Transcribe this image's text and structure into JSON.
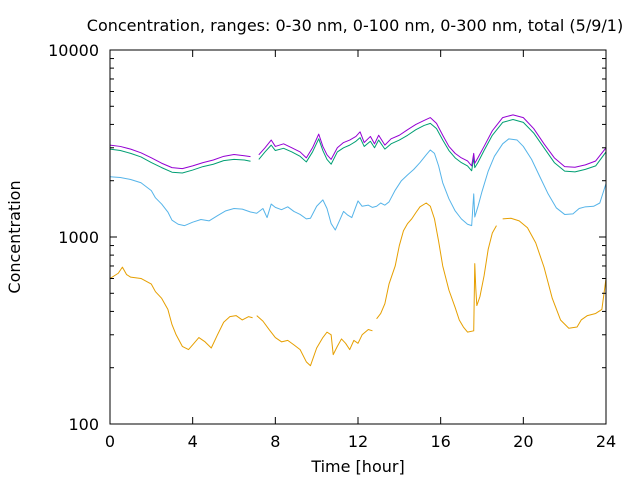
{
  "chart_data": {
    "type": "line",
    "title": "Concentration, ranges: 0-30 nm, 0-100 nm, 0-300 nm, total (5/9/1)",
    "xlabel": "Time [hour]",
    "ylabel": "Concentration",
    "xlim": [
      0,
      24
    ],
    "ylim": [
      100,
      10000
    ],
    "y_scale": "log",
    "grid": false,
    "legend": "none",
    "x_ticks": [
      0,
      4,
      8,
      12,
      16,
      20,
      24
    ],
    "x_tick_labels": [
      "0",
      "4",
      "8",
      "12",
      "16",
      "20",
      "24"
    ],
    "y_ticks": [
      100,
      1000,
      10000
    ],
    "y_tick_labels": [
      "100",
      "1000",
      "10000"
    ],
    "series": [
      {
        "color": "#e69f00",
        "points": [
          [
            0,
            600
          ],
          [
            0.4,
            640
          ],
          [
            0.6,
            690
          ],
          [
            0.8,
            630
          ],
          [
            1.0,
            610
          ],
          [
            1.5,
            600
          ],
          [
            2.0,
            560
          ],
          [
            2.2,
            510
          ],
          [
            2.5,
            470
          ],
          [
            2.8,
            410
          ],
          [
            3.0,
            340
          ],
          [
            3.2,
            300
          ],
          [
            3.5,
            260
          ],
          [
            3.8,
            250
          ],
          [
            4.0,
            265
          ],
          [
            4.3,
            290
          ],
          [
            4.6,
            275
          ],
          [
            4.9,
            255
          ],
          [
            5.2,
            300
          ],
          [
            5.5,
            350
          ],
          [
            5.8,
            375
          ],
          [
            6.1,
            380
          ],
          [
            6.4,
            360
          ],
          [
            6.7,
            375
          ],
          [
            6.9,
            370
          ],
          [
            null,
            null
          ],
          [
            7.1,
            380
          ],
          [
            7.4,
            355
          ],
          [
            7.7,
            320
          ],
          [
            8.0,
            290
          ],
          [
            8.3,
            275
          ],
          [
            8.6,
            280
          ],
          [
            8.9,
            265
          ],
          [
            9.2,
            250
          ],
          [
            9.5,
            215
          ],
          [
            9.7,
            205
          ],
          [
            10.0,
            255
          ],
          [
            10.3,
            290
          ],
          [
            10.5,
            310
          ],
          [
            10.7,
            300
          ],
          [
            10.8,
            235
          ],
          [
            11.0,
            260
          ],
          [
            11.2,
            285
          ],
          [
            11.4,
            270
          ],
          [
            11.6,
            250
          ],
          [
            11.8,
            280
          ],
          [
            12.0,
            270
          ],
          [
            12.2,
            300
          ],
          [
            12.5,
            320
          ],
          [
            12.7,
            315
          ],
          [
            null,
            null
          ],
          [
            12.9,
            365
          ],
          [
            13.1,
            390
          ],
          [
            13.3,
            440
          ],
          [
            13.5,
            560
          ],
          [
            13.8,
            700
          ],
          [
            14.0,
            900
          ],
          [
            14.2,
            1080
          ],
          [
            14.4,
            1180
          ],
          [
            14.6,
            1250
          ],
          [
            14.8,
            1350
          ],
          [
            15.0,
            1450
          ],
          [
            15.3,
            1520
          ],
          [
            15.5,
            1460
          ],
          [
            15.7,
            1250
          ],
          [
            15.9,
            950
          ],
          [
            16.1,
            700
          ],
          [
            16.4,
            520
          ],
          [
            16.7,
            420
          ],
          [
            16.9,
            360
          ],
          [
            17.1,
            330
          ],
          [
            17.3,
            310
          ],
          [
            17.6,
            315
          ],
          [
            17.65,
            720
          ],
          [
            17.7,
            530
          ],
          [
            17.75,
            430
          ],
          [
            17.9,
            480
          ],
          [
            18.1,
            620
          ],
          [
            18.3,
            860
          ],
          [
            18.5,
            1050
          ],
          [
            18.7,
            1150
          ],
          [
            null,
            null
          ],
          [
            19.0,
            1250
          ],
          [
            19.4,
            1260
          ],
          [
            19.8,
            1220
          ],
          [
            20.2,
            1120
          ],
          [
            20.6,
            930
          ],
          [
            21.0,
            690
          ],
          [
            21.4,
            470
          ],
          [
            21.8,
            360
          ],
          [
            22.2,
            325
          ],
          [
            22.6,
            330
          ],
          [
            22.8,
            360
          ],
          [
            23.1,
            380
          ],
          [
            23.5,
            390
          ],
          [
            23.8,
            410
          ],
          [
            24.0,
            600
          ]
        ]
      },
      {
        "color": "#56b4e9",
        "points": [
          [
            0,
            2100
          ],
          [
            0.5,
            2080
          ],
          [
            1.0,
            2030
          ],
          [
            1.5,
            1950
          ],
          [
            2.0,
            1770
          ],
          [
            2.2,
            1620
          ],
          [
            2.5,
            1500
          ],
          [
            2.8,
            1360
          ],
          [
            3.0,
            1230
          ],
          [
            3.3,
            1170
          ],
          [
            3.6,
            1150
          ],
          [
            4.0,
            1200
          ],
          [
            4.4,
            1240
          ],
          [
            4.8,
            1220
          ],
          [
            5.2,
            1300
          ],
          [
            5.6,
            1380
          ],
          [
            6.0,
            1420
          ],
          [
            6.4,
            1410
          ],
          [
            6.8,
            1360
          ],
          [
            7.1,
            1340
          ],
          [
            7.4,
            1420
          ],
          [
            7.6,
            1270
          ],
          [
            7.8,
            1500
          ],
          [
            8.0,
            1440
          ],
          [
            8.3,
            1400
          ],
          [
            8.6,
            1450
          ],
          [
            8.9,
            1370
          ],
          [
            9.2,
            1320
          ],
          [
            9.5,
            1250
          ],
          [
            9.7,
            1260
          ],
          [
            10.0,
            1460
          ],
          [
            10.3,
            1580
          ],
          [
            10.5,
            1420
          ],
          [
            10.7,
            1180
          ],
          [
            10.9,
            1090
          ],
          [
            11.1,
            1220
          ],
          [
            11.3,
            1370
          ],
          [
            11.5,
            1310
          ],
          [
            11.7,
            1270
          ],
          [
            12.0,
            1560
          ],
          [
            12.2,
            1460
          ],
          [
            12.5,
            1480
          ],
          [
            12.7,
            1440
          ],
          [
            12.9,
            1460
          ],
          [
            13.1,
            1520
          ],
          [
            13.3,
            1480
          ],
          [
            13.5,
            1540
          ],
          [
            13.8,
            1780
          ],
          [
            14.1,
            2000
          ],
          [
            14.4,
            2150
          ],
          [
            14.7,
            2300
          ],
          [
            15.0,
            2500
          ],
          [
            15.3,
            2750
          ],
          [
            15.5,
            2920
          ],
          [
            15.7,
            2800
          ],
          [
            15.9,
            2400
          ],
          [
            16.1,
            1950
          ],
          [
            16.4,
            1600
          ],
          [
            16.7,
            1380
          ],
          [
            17.0,
            1250
          ],
          [
            17.3,
            1170
          ],
          [
            17.5,
            1150
          ],
          [
            17.6,
            1700
          ],
          [
            17.65,
            1280
          ],
          [
            17.8,
            1450
          ],
          [
            18.0,
            1750
          ],
          [
            18.3,
            2250
          ],
          [
            18.6,
            2700
          ],
          [
            19.0,
            3150
          ],
          [
            19.3,
            3350
          ],
          [
            19.7,
            3300
          ],
          [
            20.0,
            3050
          ],
          [
            20.4,
            2600
          ],
          [
            20.8,
            2100
          ],
          [
            21.2,
            1700
          ],
          [
            21.6,
            1430
          ],
          [
            22.0,
            1320
          ],
          [
            22.4,
            1330
          ],
          [
            22.7,
            1420
          ],
          [
            23.0,
            1450
          ],
          [
            23.4,
            1460
          ],
          [
            23.7,
            1520
          ],
          [
            24.0,
            1930
          ]
        ]
      },
      {
        "color": "#009e73",
        "points": [
          [
            0,
            2950
          ],
          [
            0.5,
            2900
          ],
          [
            1.0,
            2800
          ],
          [
            1.5,
            2680
          ],
          [
            2.0,
            2500
          ],
          [
            2.5,
            2350
          ],
          [
            3.0,
            2220
          ],
          [
            3.5,
            2200
          ],
          [
            4.0,
            2280
          ],
          [
            4.5,
            2380
          ],
          [
            5.0,
            2450
          ],
          [
            5.5,
            2560
          ],
          [
            6.0,
            2600
          ],
          [
            6.5,
            2580
          ],
          [
            6.8,
            2540
          ],
          [
            null,
            null
          ],
          [
            7.2,
            2600
          ],
          [
            7.5,
            2850
          ],
          [
            7.8,
            3100
          ],
          [
            8.0,
            2900
          ],
          [
            8.4,
            2980
          ],
          [
            8.8,
            2850
          ],
          [
            9.2,
            2700
          ],
          [
            9.5,
            2520
          ],
          [
            9.8,
            2850
          ],
          [
            10.1,
            3350
          ],
          [
            10.3,
            2900
          ],
          [
            10.5,
            2600
          ],
          [
            10.7,
            2450
          ],
          [
            11.0,
            2850
          ],
          [
            11.3,
            3000
          ],
          [
            11.6,
            3100
          ],
          [
            11.9,
            3250
          ],
          [
            12.1,
            3400
          ],
          [
            12.3,
            3050
          ],
          [
            12.6,
            3250
          ],
          [
            12.8,
            3000
          ],
          [
            13.0,
            3300
          ],
          [
            13.3,
            2950
          ],
          [
            13.6,
            3150
          ],
          [
            14.0,
            3300
          ],
          [
            14.4,
            3500
          ],
          [
            14.8,
            3750
          ],
          [
            15.2,
            3950
          ],
          [
            15.5,
            4050
          ],
          [
            15.8,
            3800
          ],
          [
            16.1,
            3300
          ],
          [
            16.4,
            2900
          ],
          [
            16.7,
            2650
          ],
          [
            17.0,
            2500
          ],
          [
            17.3,
            2400
          ],
          [
            17.5,
            2260
          ],
          [
            17.6,
            2650
          ],
          [
            17.65,
            2350
          ],
          [
            17.8,
            2500
          ],
          [
            18.1,
            2900
          ],
          [
            18.5,
            3500
          ],
          [
            19.0,
            4100
          ],
          [
            19.5,
            4250
          ],
          [
            20.0,
            4100
          ],
          [
            20.5,
            3600
          ],
          [
            21.0,
            3000
          ],
          [
            21.5,
            2500
          ],
          [
            22.0,
            2250
          ],
          [
            22.5,
            2230
          ],
          [
            23.0,
            2300
          ],
          [
            23.5,
            2400
          ],
          [
            24.0,
            2850
          ]
        ]
      },
      {
        "color": "#9400d3",
        "points": [
          [
            0,
            3100
          ],
          [
            0.5,
            3050
          ],
          [
            1.0,
            2950
          ],
          [
            1.5,
            2820
          ],
          [
            2.0,
            2650
          ],
          [
            2.5,
            2480
          ],
          [
            3.0,
            2350
          ],
          [
            3.5,
            2320
          ],
          [
            4.0,
            2400
          ],
          [
            4.5,
            2500
          ],
          [
            5.0,
            2580
          ],
          [
            5.5,
            2700
          ],
          [
            6.0,
            2760
          ],
          [
            6.5,
            2720
          ],
          [
            6.8,
            2690
          ],
          [
            null,
            null
          ],
          [
            7.2,
            2750
          ],
          [
            7.5,
            3000
          ],
          [
            7.8,
            3300
          ],
          [
            8.0,
            3050
          ],
          [
            8.4,
            3150
          ],
          [
            8.8,
            3000
          ],
          [
            9.2,
            2850
          ],
          [
            9.5,
            2650
          ],
          [
            9.8,
            3000
          ],
          [
            10.1,
            3550
          ],
          [
            10.3,
            3050
          ],
          [
            10.5,
            2750
          ],
          [
            10.7,
            2600
          ],
          [
            11.0,
            3000
          ],
          [
            11.3,
            3200
          ],
          [
            11.6,
            3300
          ],
          [
            11.9,
            3450
          ],
          [
            12.1,
            3650
          ],
          [
            12.3,
            3200
          ],
          [
            12.6,
            3450
          ],
          [
            12.8,
            3150
          ],
          [
            13.0,
            3500
          ],
          [
            13.3,
            3100
          ],
          [
            13.6,
            3350
          ],
          [
            14.0,
            3500
          ],
          [
            14.4,
            3750
          ],
          [
            14.8,
            4000
          ],
          [
            15.2,
            4200
          ],
          [
            15.5,
            4350
          ],
          [
            15.8,
            4050
          ],
          [
            16.1,
            3500
          ],
          [
            16.4,
            3050
          ],
          [
            16.7,
            2800
          ],
          [
            17.0,
            2650
          ],
          [
            17.3,
            2550
          ],
          [
            17.5,
            2400
          ],
          [
            17.6,
            2800
          ],
          [
            17.65,
            2480
          ],
          [
            17.8,
            2650
          ],
          [
            18.1,
            3050
          ],
          [
            18.5,
            3700
          ],
          [
            19.0,
            4350
          ],
          [
            19.5,
            4500
          ],
          [
            20.0,
            4350
          ],
          [
            20.5,
            3800
          ],
          [
            21.0,
            3150
          ],
          [
            21.5,
            2650
          ],
          [
            22.0,
            2380
          ],
          [
            22.5,
            2360
          ],
          [
            23.0,
            2430
          ],
          [
            23.5,
            2550
          ],
          [
            24.0,
            3000
          ]
        ]
      }
    ]
  }
}
